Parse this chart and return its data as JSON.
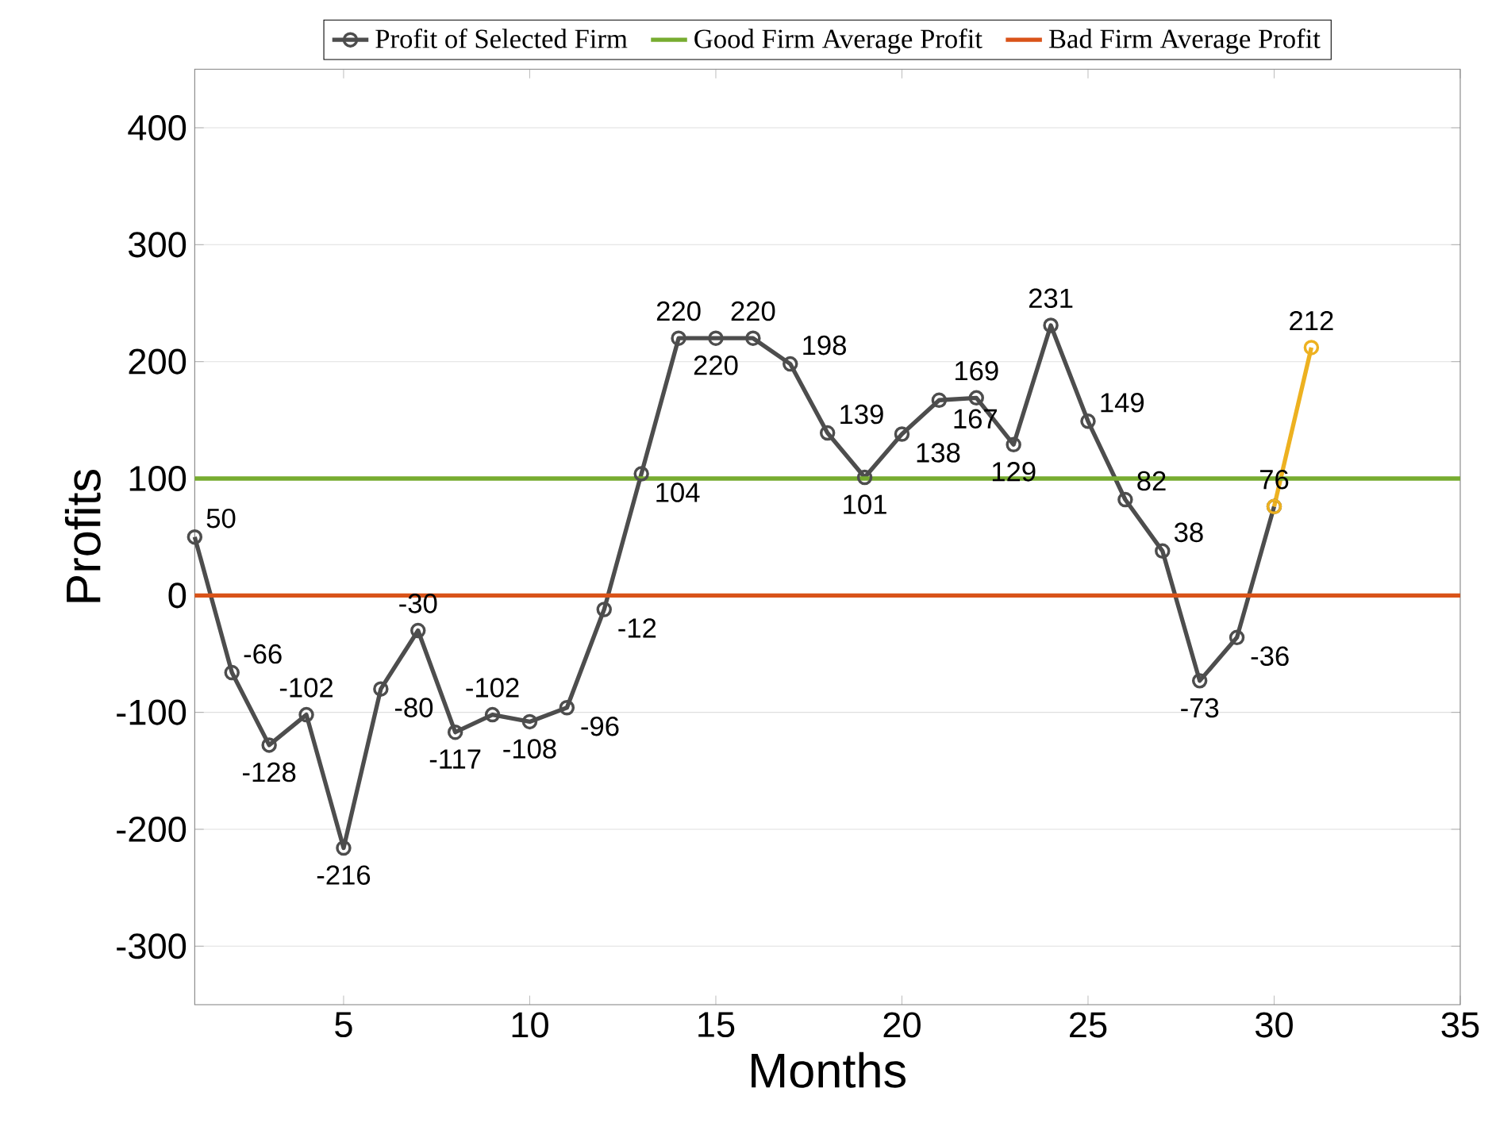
{
  "chart_data": {
    "type": "line",
    "xlabel": "Months",
    "ylabel": "Profits",
    "xlim": [
      1,
      35
    ],
    "xticks": [
      5,
      10,
      15,
      20,
      25,
      30,
      35
    ],
    "ylim": [
      -350,
      450
    ],
    "yticks": [
      -300,
      -200,
      -100,
      0,
      100,
      200,
      300,
      400
    ],
    "grid": "y",
    "legend": "top",
    "marker": "circle",
    "line_style": "solid",
    "series": [
      {
        "name": "Profit of Selected Firm",
        "color": "#4d4d4d",
        "x": [
          1,
          2,
          3,
          4,
          5,
          6,
          7,
          8,
          9,
          10,
          11,
          12,
          13,
          14,
          15,
          16,
          17,
          18,
          19,
          20,
          21,
          22,
          23,
          24,
          25,
          26,
          27,
          28,
          29,
          30
        ],
        "values": [
          50,
          -66,
          -128,
          -102,
          -216,
          -80,
          -30,
          -117,
          -102,
          -108,
          -96,
          -12,
          104,
          220,
          220,
          220,
          198,
          139,
          101,
          138,
          167,
          169,
          129,
          231,
          149,
          82,
          38,
          -73,
          -36,
          76
        ],
        "value_labels": [
          "50",
          "-66",
          "-128",
          "-102",
          "-216",
          "-80",
          "-30",
          "-117",
          "-102",
          "-108",
          "-96",
          "-12",
          "104",
          "220",
          "220",
          "220",
          "198",
          "139",
          "101",
          "138",
          "167",
          "169",
          "129",
          "231",
          "149",
          "82",
          "38",
          "-73",
          "-36",
          null
        ]
      },
      {
        "color": "#edb120",
        "x": [
          30,
          31
        ],
        "values": [
          76,
          212
        ],
        "value_labels": [
          "76",
          "212"
        ]
      }
    ],
    "ref_lines": [
      {
        "axis": "y",
        "value": 100,
        "label": "Good Firm Average Profit",
        "color": "#77ac30"
      },
      {
        "axis": "y",
        "value": 0,
        "label": "Bad Firm Average Profit",
        "color": "#d95319"
      }
    ]
  }
}
